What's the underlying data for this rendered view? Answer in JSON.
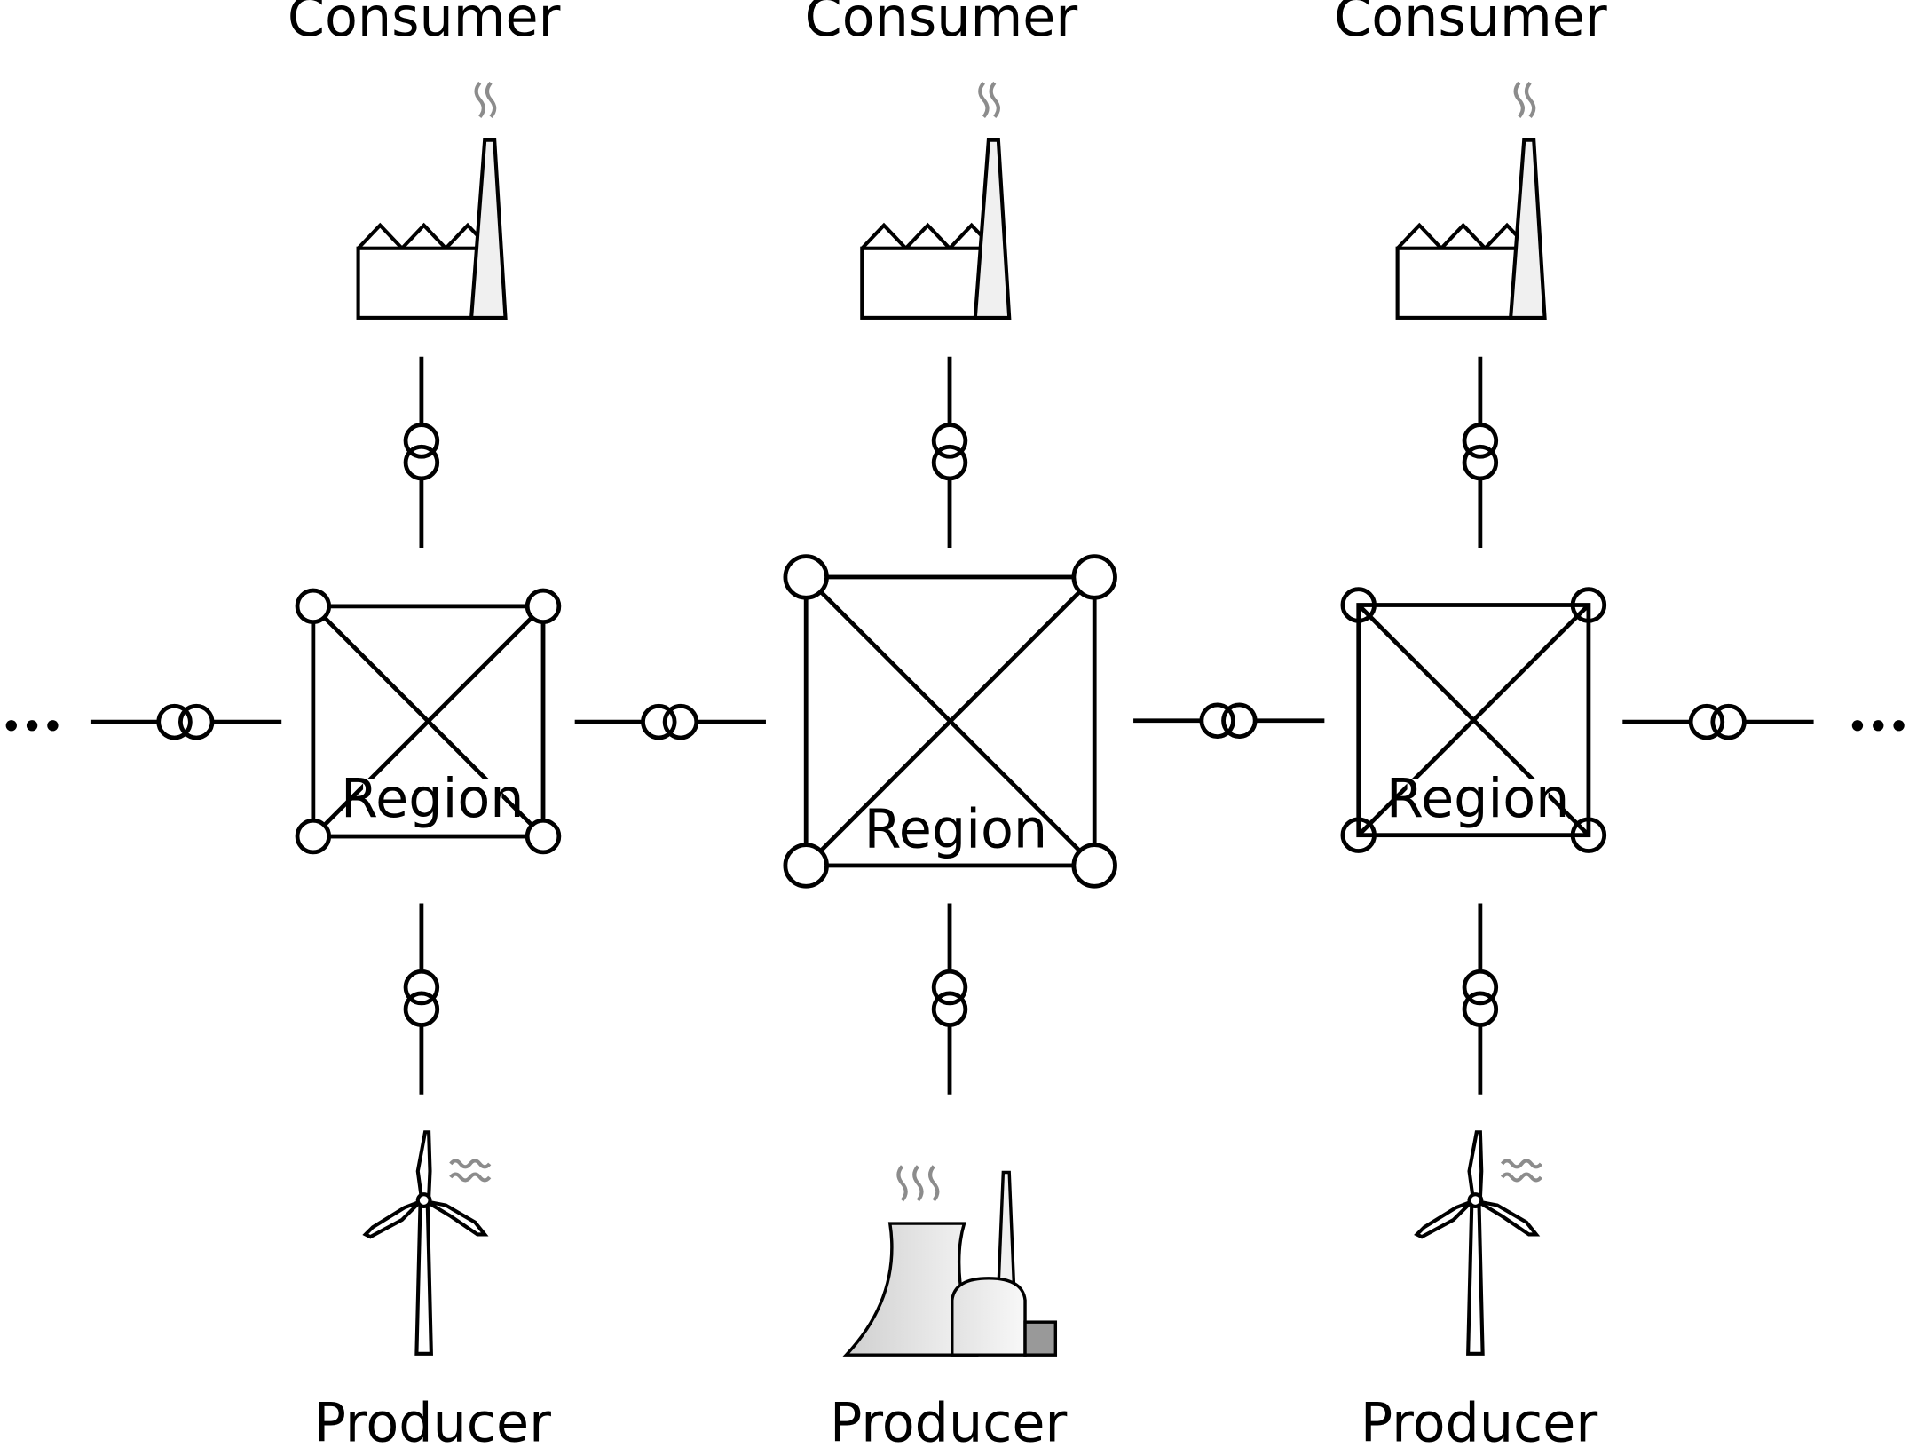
{
  "title": "",
  "columns": [
    {
      "consumer_label": "Consumer",
      "region_label": "Region",
      "producer_label": "Producer",
      "producer_icon": "wind-turbine-icon",
      "consumer_icon": "factory-icon"
    },
    {
      "consumer_label": "Consumer",
      "region_label": "Region",
      "producer_label": "Producer",
      "producer_icon": "power-plant-icon",
      "consumer_icon": "factory-icon"
    },
    {
      "consumer_label": "Consumer",
      "region_label": "Region",
      "producer_label": "Producer",
      "producer_icon": "wind-turbine-icon",
      "consumer_icon": "factory-icon"
    }
  ],
  "continuation_icon": "ellipsis-icon",
  "transformer_icon": "transformer-icon",
  "colors": {
    "line": "#000000",
    "heat_waves": "#8c8c8c",
    "chimney_fill": "#f0f0f0",
    "cooling_tower_fill": "#e6e6e6",
    "annex_fill": "#999999"
  }
}
